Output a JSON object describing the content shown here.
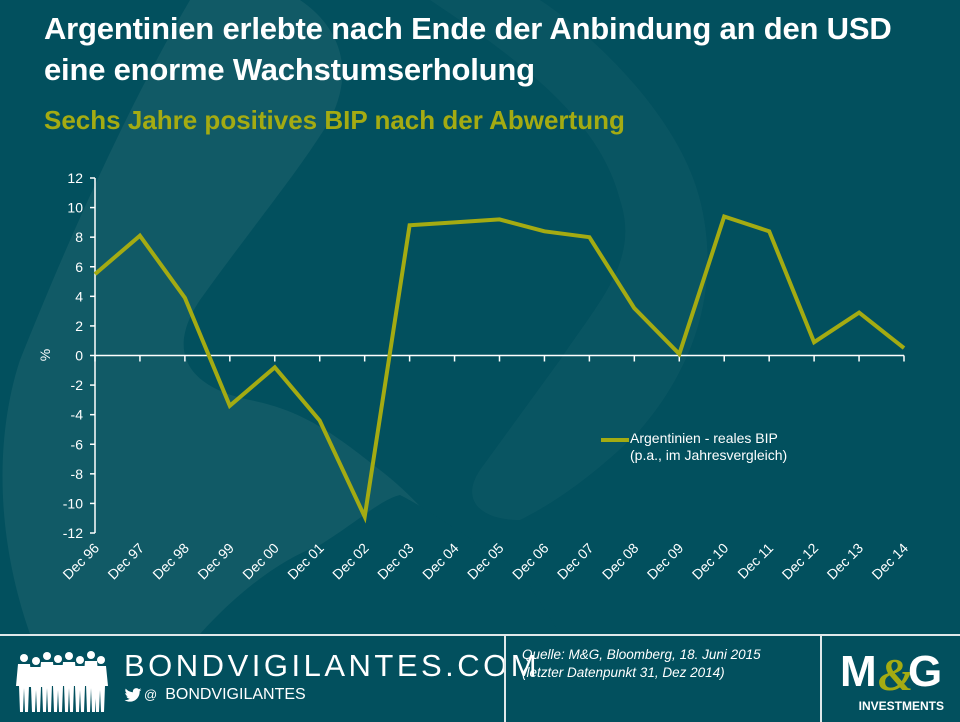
{
  "header": {
    "title": "Argentinien erlebte nach Ende der Anbindung an den USD eine enorme Wachstumserholung",
    "subtitle": "Sechs Jahre positives BIP nach der Abwertung"
  },
  "colors": {
    "background": "#02505e",
    "background_deco": "#115a66",
    "series_line": "#a4ab12",
    "text": "#ffffff",
    "accent": "#a4ab12"
  },
  "chart_data": {
    "type": "line",
    "title": "Argentinien erlebte nach Ende der Anbindung an den USD eine enorme Wachstumserholung",
    "subtitle": "Sechs Jahre positives BIP nach der Abwertung",
    "xlabel": "",
    "ylabel": "%",
    "ylim": [
      -12,
      12
    ],
    "yticks": [
      12,
      10,
      8,
      6,
      4,
      2,
      0,
      -2,
      -4,
      -6,
      -8,
      -10,
      -12
    ],
    "grid": false,
    "legend_position": "lower-right",
    "categories": [
      "Dec 96",
      "Dec 97",
      "Dec 98",
      "Dec 99",
      "Dec 00",
      "Dec 01",
      "Dec 02",
      "Dec 03",
      "Dec 04",
      "Dec 05",
      "Dec 06",
      "Dec 07",
      "Dec 08",
      "Dec 09",
      "Dec 10",
      "Dec 11",
      "Dec 12",
      "Dec 13",
      "Dec 14"
    ],
    "series": [
      {
        "name": "Argentinien - reales BIP (p.a., im Jahresvergleich)",
        "values": [
          5.5,
          8.1,
          3.9,
          -3.4,
          -0.8,
          -4.4,
          -10.9,
          8.8,
          9.0,
          9.2,
          8.4,
          8.0,
          3.2,
          0.1,
          9.4,
          8.4,
          0.9,
          2.9,
          0.5
        ]
      }
    ]
  },
  "legend": {
    "line1": "Argentinien - reales BIP",
    "line2": "(p.a., im Jahresvergleich)"
  },
  "footer": {
    "brand": "BONDVIGILANTES.COM",
    "at_symbol": "@",
    "handle": "BONDVIGILANTES",
    "source_line1": "Quelle: M&G, Bloomberg, 18. Juni 2015",
    "source_line2": "(letzter Datenpunkt 31, Dez 2014)",
    "logo_text": "M&G",
    "logo_sub": "INVESTMENTS",
    "icons": [
      "people-silhouettes-icon",
      "twitter-bird-icon"
    ]
  }
}
